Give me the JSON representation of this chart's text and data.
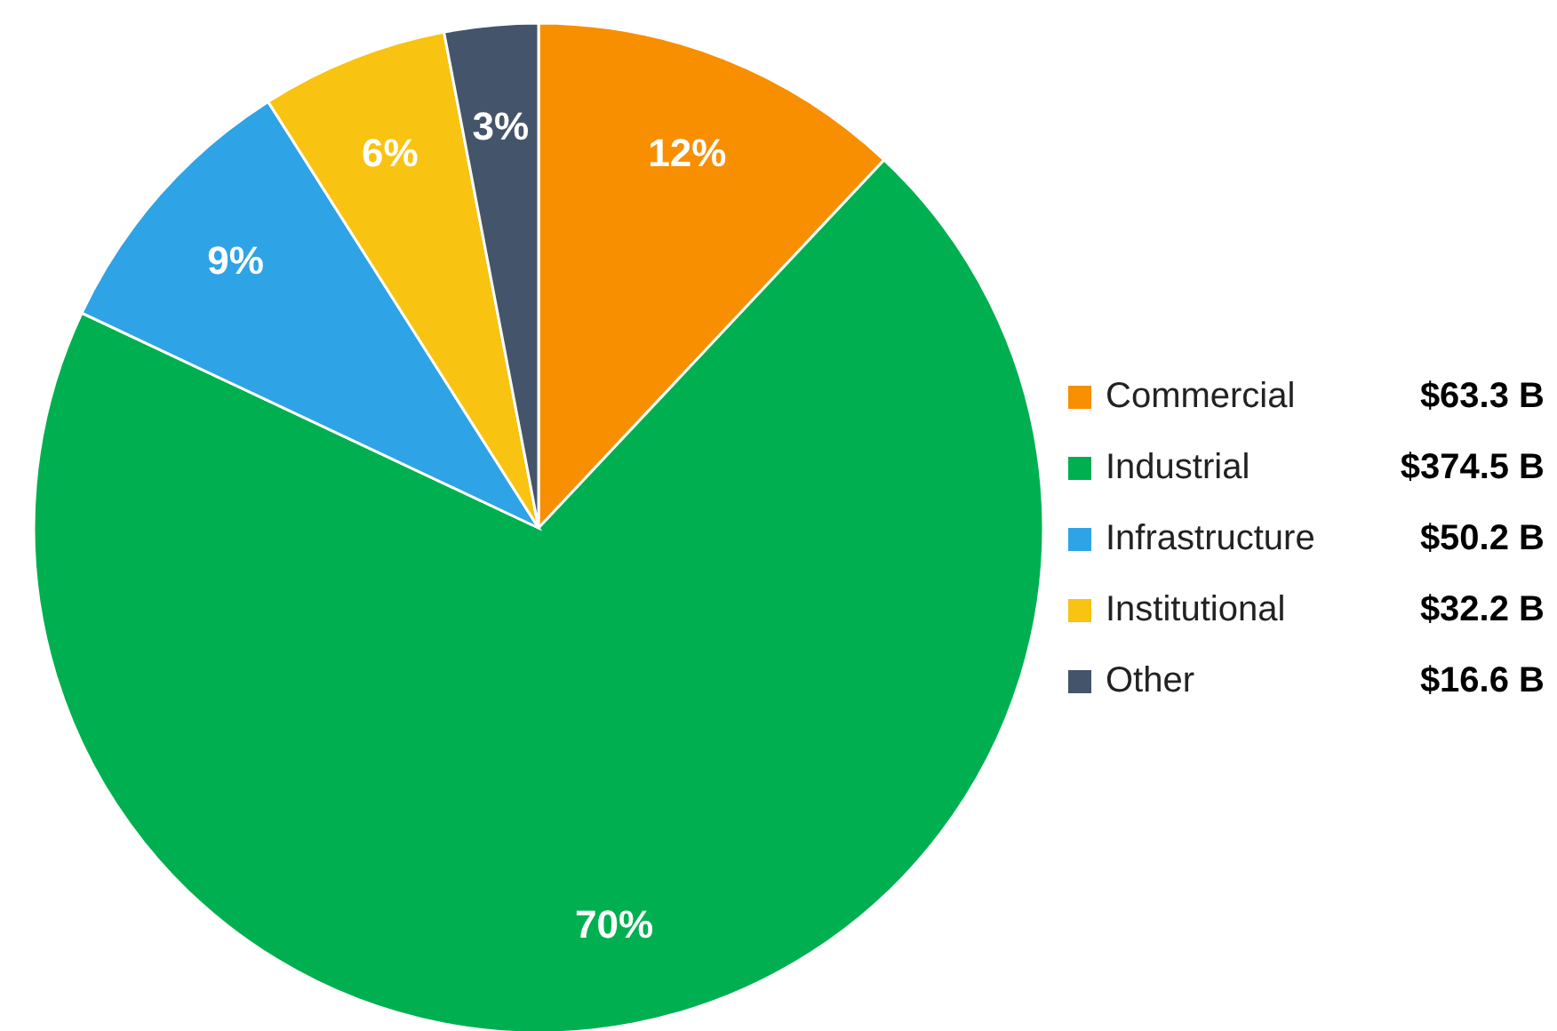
{
  "chart_data": {
    "type": "pie",
    "categories": [
      "Commercial",
      "Industrial",
      "Infrastructure",
      "Institutional",
      "Other"
    ],
    "values": [
      12,
      70,
      9,
      6,
      3
    ],
    "colors": [
      "#f78f00",
      "#00b050",
      "#2ea3e6",
      "#f8c311",
      "#44546a"
    ],
    "value_labels": [
      "12%",
      "70%",
      "9%",
      "6%",
      "3%"
    ],
    "annotations": [
      "$63.3 B",
      "$374.5 B",
      "$50.2 B",
      "$32.2 B",
      "$16.6 B"
    ],
    "legend": "right"
  }
}
